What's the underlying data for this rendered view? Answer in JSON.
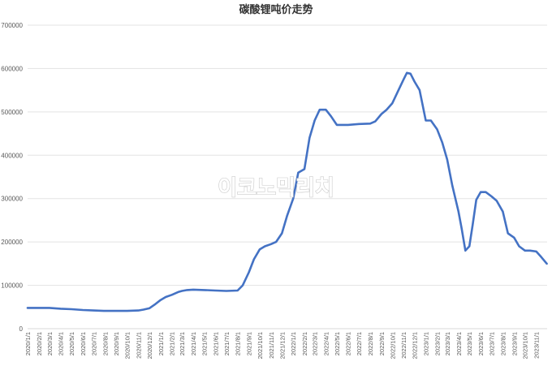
{
  "chart_data": {
    "type": "line",
    "title": "碳酸锂吨价走势",
    "xlabel": "",
    "ylabel": "",
    "ylim": [
      0,
      700000
    ],
    "yticks": [
      0,
      100000,
      200000,
      300000,
      400000,
      500000,
      600000,
      700000
    ],
    "grid": true,
    "legend": "none",
    "line_color": "#4472C4",
    "x_tick_labels": [
      "2020/1/1",
      "2020/2/1",
      "2020/3/1",
      "2020/4/1",
      "2020/5/1",
      "2020/6/1",
      "2020/7/1",
      "2020/8/1",
      "2020/9/1",
      "2020/10/1",
      "2020/11/1",
      "2020/12/1",
      "2021/1/1",
      "2021/2/1",
      "2021/3/1",
      "2021/4/1",
      "2021/5/1",
      "2021/6/1",
      "2021/7/1",
      "2021/8/1",
      "2021/9/1",
      "2021/10/1",
      "2021/11/1",
      "2021/12/1",
      "2022/1/1",
      "2022/2/1",
      "2022/3/1",
      "2022/4/1",
      "2022/5/1",
      "2022/6/1",
      "2022/7/1",
      "2022/8/1",
      "2022/9/1",
      "2022/10/1",
      "2022/11/1",
      "2022/12/1",
      "2023/1/1",
      "2023/2/1",
      "2023/3/1",
      "2023/4/1",
      "2023/5/1",
      "2023/6/1",
      "2023/7/1",
      "2023/8/1",
      "2023/9/1",
      "2023/10/1",
      "2023/11/1"
    ],
    "series": [
      {
        "name": "",
        "x": [
          "2020/1/1",
          "2020/2/1",
          "2020/3/1",
          "2020/4/1",
          "2020/5/1",
          "2020/6/1",
          "2020/7/1",
          "2020/8/1",
          "2020/9/1",
          "2020/10/1",
          "2020/11/1",
          "2020/11/15",
          "2020/12/1",
          "2020/12/15",
          "2021/1/1",
          "2021/1/15",
          "2021/2/1",
          "2021/2/20",
          "2021/3/1",
          "2021/3/15",
          "2021/4/1",
          "2021/5/1",
          "2021/6/1",
          "2021/7/1",
          "2021/8/1",
          "2021/8/15",
          "2021/9/1",
          "2021/9/15",
          "2021/10/1",
          "2021/10/15",
          "2021/11/1",
          "2021/11/15",
          "2021/12/1",
          "2021/12/15",
          "2022/1/1",
          "2022/1/15",
          "2022/2/1",
          "2022/2/15",
          "2022/3/1",
          "2022/3/15",
          "2022/4/1",
          "2022/4/15",
          "2022/5/1",
          "2022/6/1",
          "2022/7/1",
          "2022/8/1",
          "2022/8/15",
          "2022/9/1",
          "2022/9/15",
          "2022/10/1",
          "2022/10/15",
          "2022/11/1",
          "2022/11/10",
          "2022/11/20",
          "2022/12/1",
          "2022/12/15",
          "2023/1/1",
          "2023/1/15",
          "2023/2/1",
          "2023/2/15",
          "2023/3/1",
          "2023/3/15",
          "2023/4/1",
          "2023/4/10",
          "2023/4/20",
          "2023/5/1",
          "2023/5/10",
          "2023/5/20",
          "2023/6/1",
          "2023/6/15",
          "2023/7/1",
          "2023/7/15",
          "2023/8/1",
          "2023/8/15",
          "2023/9/1",
          "2023/9/15",
          "2023/10/1",
          "2023/10/15",
          "2023/11/1",
          "2023/11/15",
          "2023/11/30"
        ],
        "values": [
          48000,
          48000,
          48000,
          46000,
          45000,
          43000,
          42000,
          41000,
          41000,
          41000,
          42000,
          44000,
          47000,
          55000,
          66000,
          73000,
          78000,
          85000,
          87000,
          89000,
          90000,
          89000,
          88000,
          87000,
          88000,
          100000,
          130000,
          160000,
          183000,
          190000,
          195000,
          200000,
          220000,
          260000,
          300000,
          360000,
          368000,
          440000,
          480000,
          505000,
          505000,
          490000,
          470000,
          470000,
          472000,
          473000,
          478000,
          495000,
          505000,
          520000,
          545000,
          575000,
          590000,
          588000,
          570000,
          550000,
          480000,
          480000,
          460000,
          430000,
          390000,
          330000,
          270000,
          230000,
          180000,
          190000,
          240000,
          297000,
          315000,
          315000,
          305000,
          295000,
          270000,
          220000,
          210000,
          190000,
          180000,
          180000,
          178000,
          165000,
          150000
        ]
      }
    ]
  },
  "watermark": "이코노믹리치"
}
